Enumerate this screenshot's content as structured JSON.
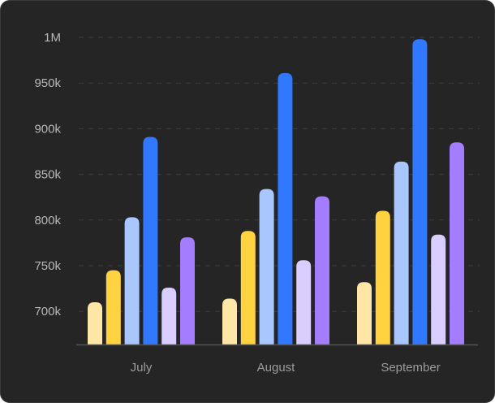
{
  "chart_data": {
    "type": "bar",
    "title": "",
    "xlabel": "",
    "ylabel": "",
    "categories": [
      "July",
      "August",
      "September"
    ],
    "y_ticks": [
      "700k",
      "750k",
      "800k",
      "850k",
      "900k",
      "950k",
      "1M"
    ],
    "ylim": [
      668000,
      1000000
    ],
    "grid": true,
    "legend": "none",
    "series": [
      {
        "values": [
          710000,
          714000,
          732000
        ],
        "color": "#fde6a6"
      },
      {
        "values": [
          745000,
          788000,
          810000
        ],
        "color": "#ffd23f"
      },
      {
        "values": [
          803000,
          834000,
          864000
        ],
        "color": "#a9c6ff"
      },
      {
        "values": [
          891000,
          961000,
          998000
        ],
        "color": "#2f78ff"
      },
      {
        "values": [
          726000,
          756000,
          784000
        ],
        "color": "#dacdff"
      },
      {
        "values": [
          781000,
          826000,
          885000
        ],
        "color": "#a47dff"
      }
    ]
  },
  "colors": {
    "background": "#252525",
    "grid": "#3d3d3d",
    "axis": "#555555"
  }
}
